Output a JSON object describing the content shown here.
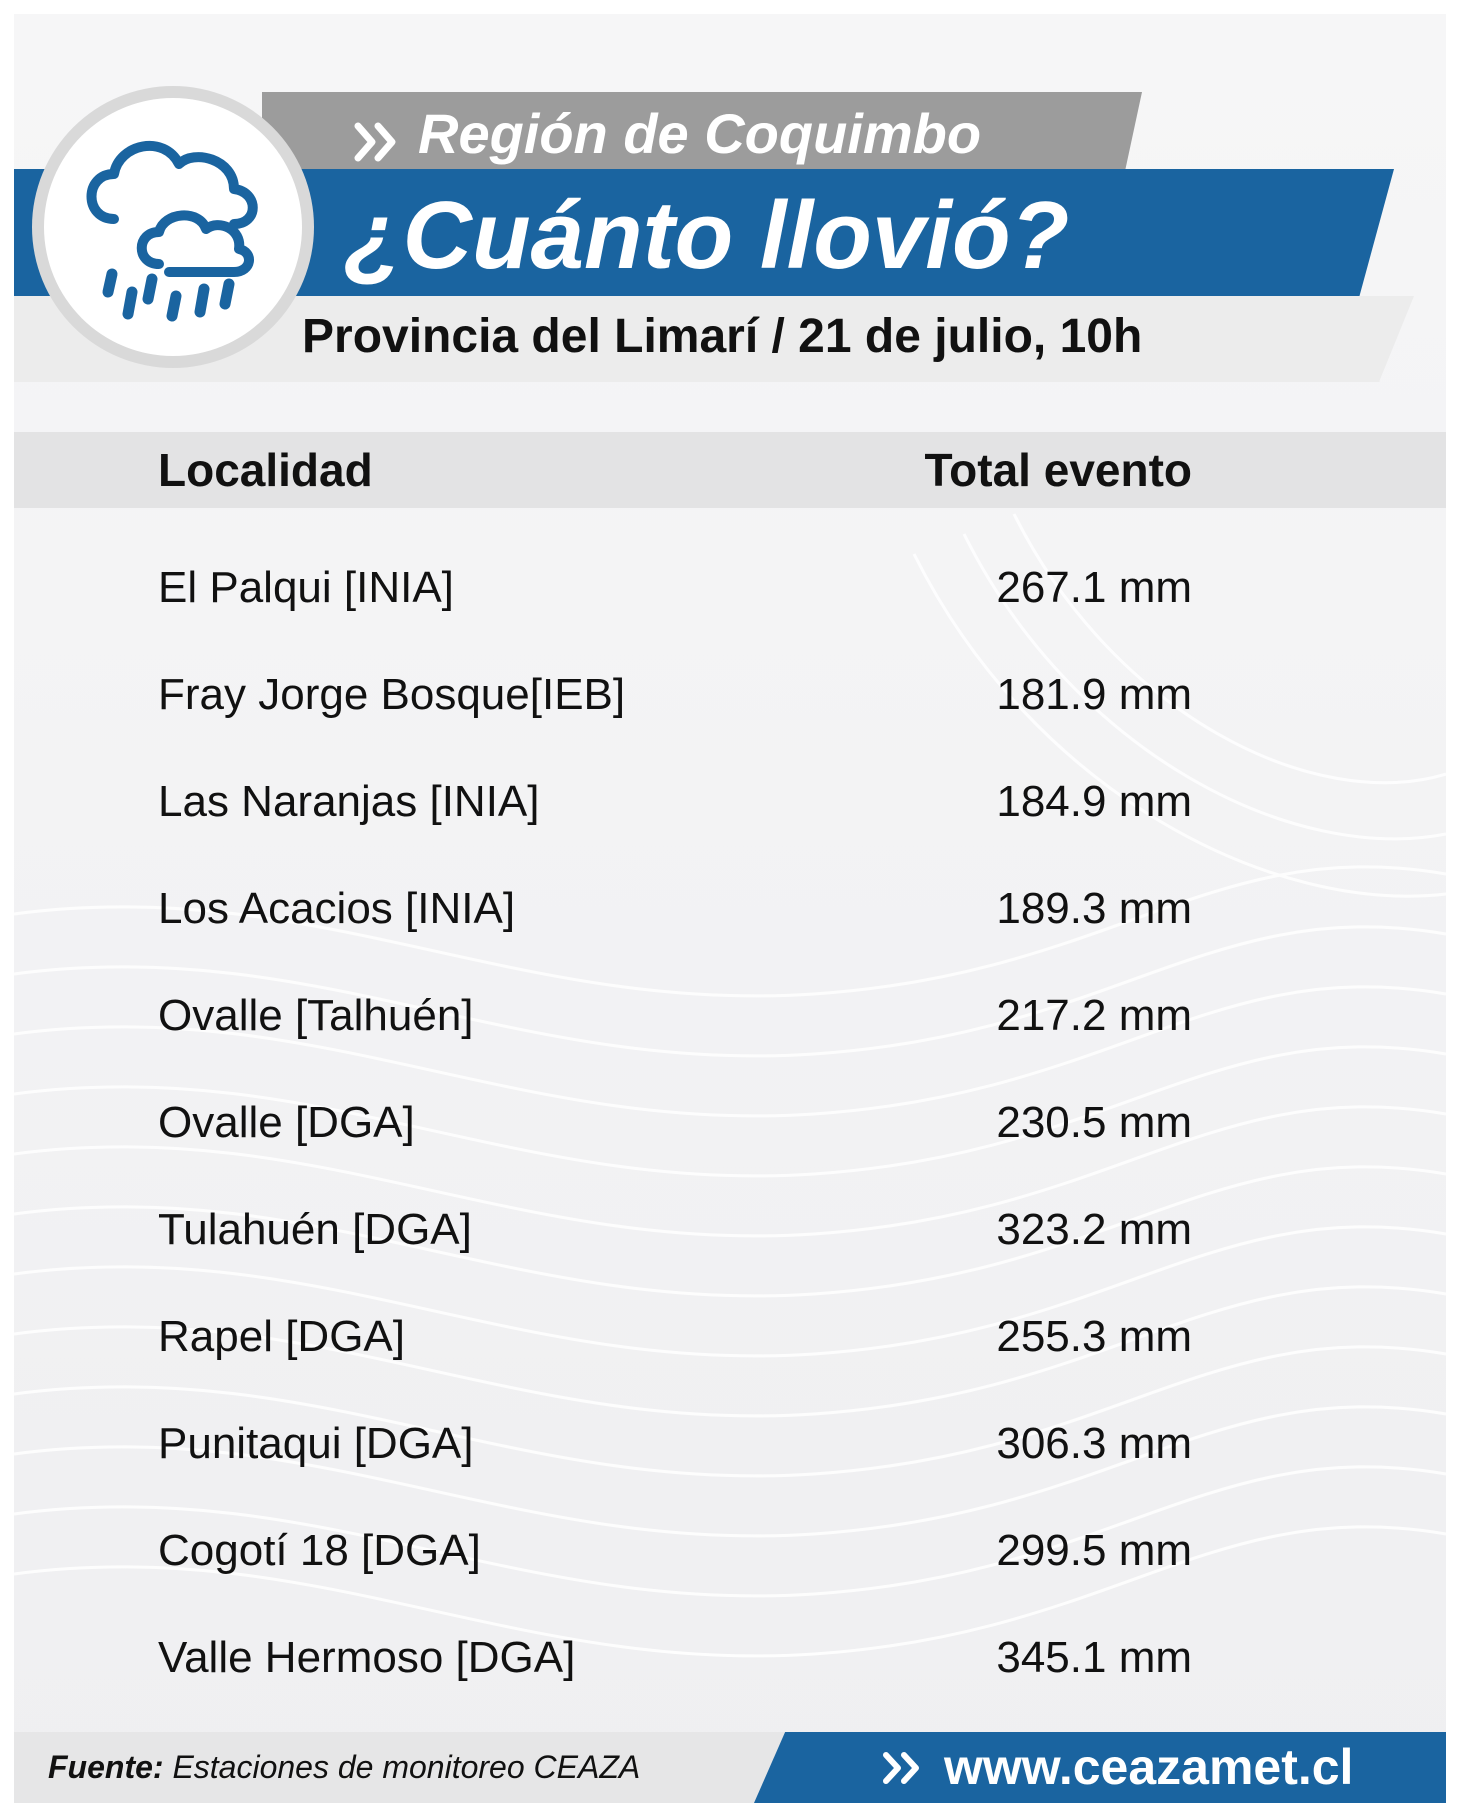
{
  "header": {
    "region": "Región de Coquimbo",
    "title": "¿Cuánto llovió?",
    "subtitle": "Provincia del Limarí / 21 de julio, 10h"
  },
  "table": {
    "col_location": "Localidad",
    "col_total": "Total evento",
    "rows": [
      {
        "name": "El Palqui [INIA]",
        "value": "267.1 mm"
      },
      {
        "name": "Fray Jorge Bosque[IEB]",
        "value": "181.9 mm"
      },
      {
        "name": "Las Naranjas [INIA]",
        "value": "184.9 mm"
      },
      {
        "name": "Los Acacios [INIA]",
        "value": "189.3 mm"
      },
      {
        "name": "Ovalle [Talhuén]",
        "value": "217.2 mm"
      },
      {
        "name": "Ovalle [DGA]",
        "value": "230.5 mm"
      },
      {
        "name": "Tulahuén [DGA]",
        "value": "323.2 mm"
      },
      {
        "name": "Rapel [DGA]",
        "value": "255.3 mm"
      },
      {
        "name": "Punitaqui [DGA]",
        "value": "306.3 mm"
      },
      {
        "name": "Cogotí 18 [DGA]",
        "value": "299.5 mm"
      },
      {
        "name": "Valle Hermoso [DGA]",
        "value": "345.1 mm"
      }
    ]
  },
  "footer": {
    "source_label": "Fuente:",
    "source_text": "Estaciones de monitoreo CEAZA",
    "website": "www.ceazamet.cl"
  },
  "icons": [
    "rain-cloud-icon",
    "double-chevron-icon"
  ],
  "colors": {
    "brand_blue": "#1a64a0",
    "band_gray": "#9c9c9c"
  }
}
